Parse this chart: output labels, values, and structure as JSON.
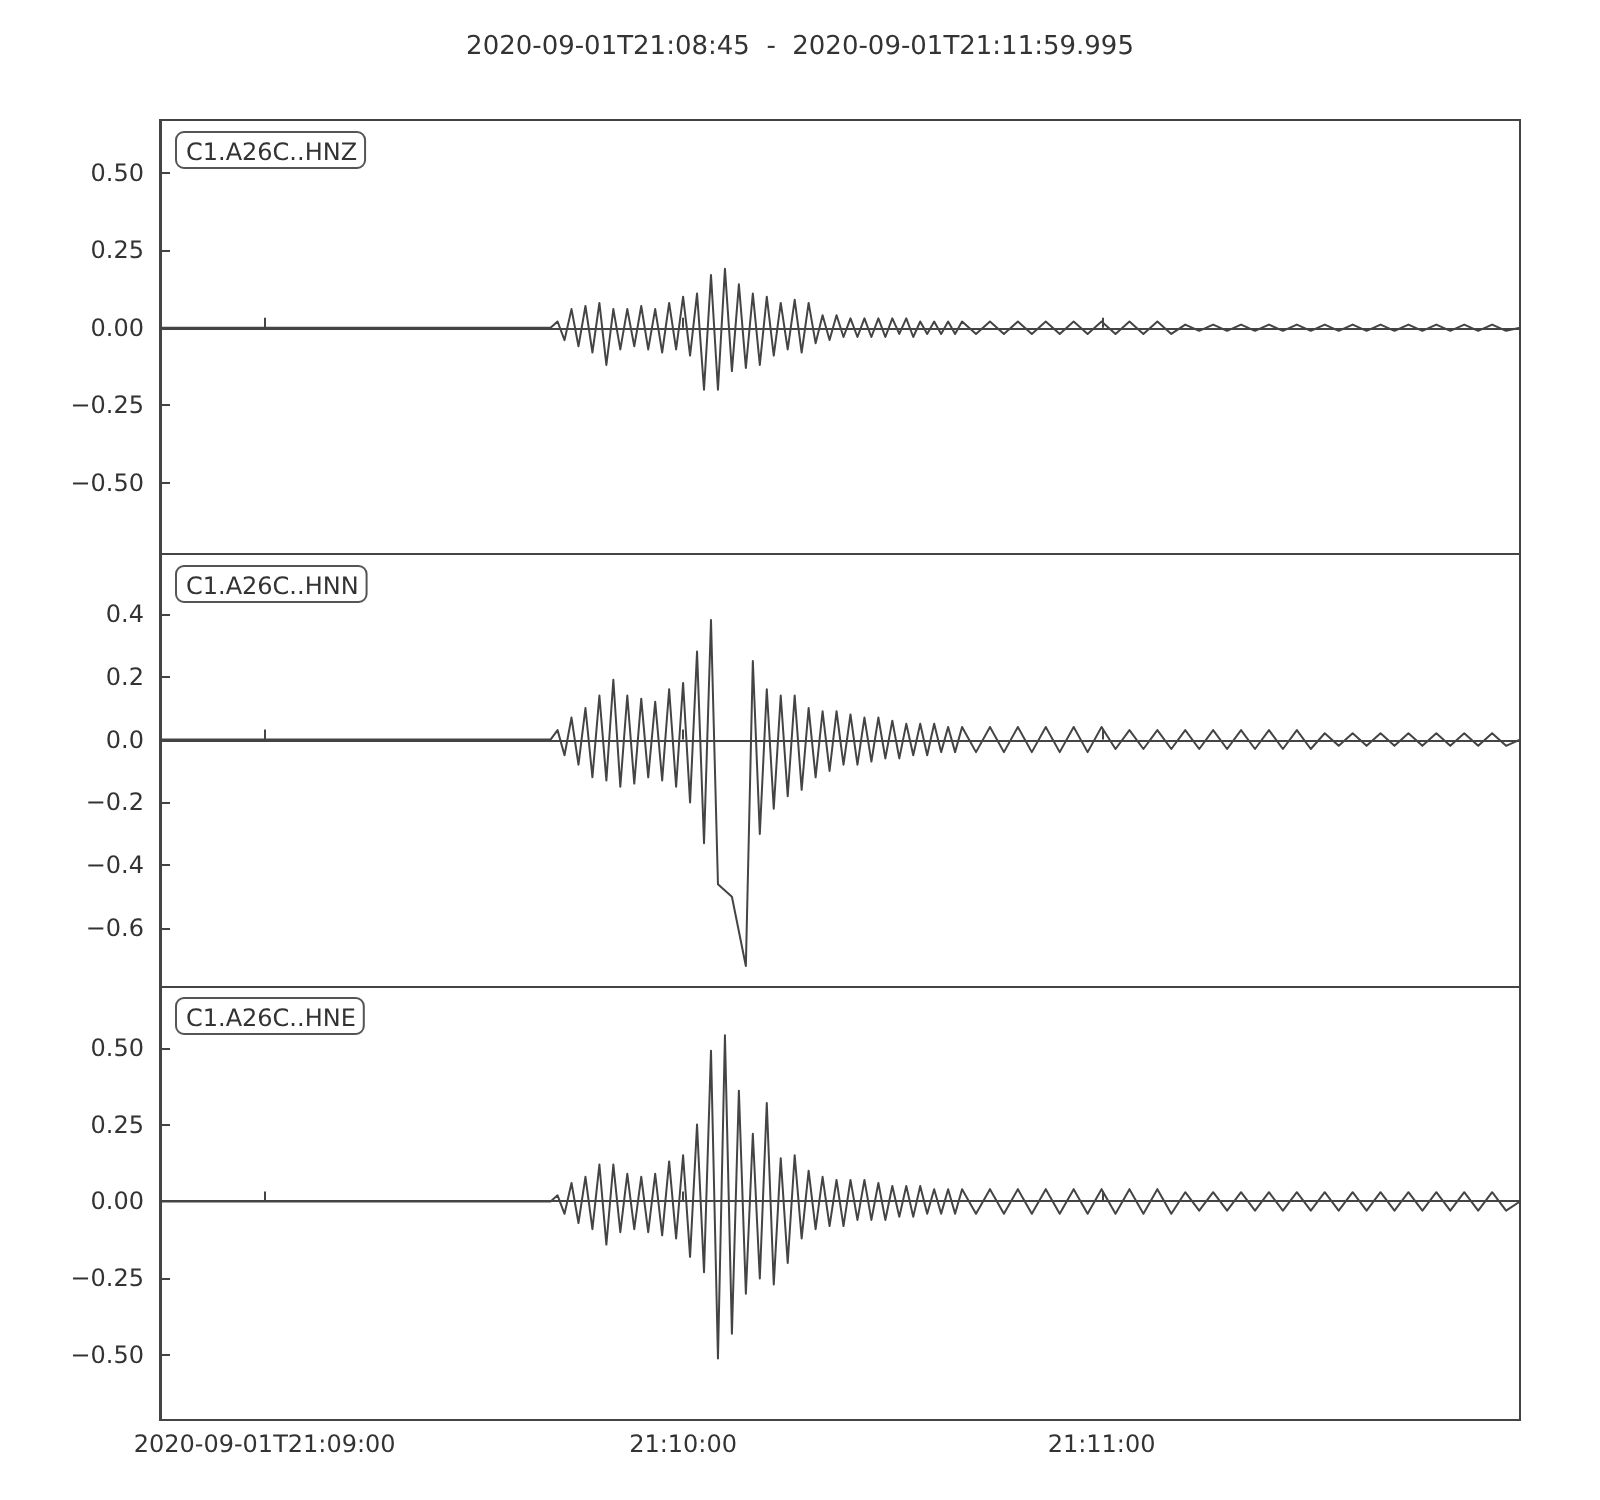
{
  "chart_data": [
    {
      "type": "line",
      "title": "2020-09-01T21:08:45  -  2020-09-01T21:11:59.995",
      "legend": "top left",
      "tick_labels": "y",
      "xlim": [
        "2020-09-01T21:08:45",
        "2020-09-01T21:11:59.995"
      ],
      "xticks": [
        {
          "value": "2020-09-01T21:09:00",
          "label": null
        },
        {
          "value": "2020-09-01T21:10:00",
          "label": null
        },
        {
          "value": "2020-09-01T21:11:00",
          "label": null
        }
      ],
      "ylim": [
        -0.73,
        0.67
      ],
      "yticks": [
        {
          "value": -0.5,
          "label": "−0.50"
        },
        {
          "value": -0.25,
          "label": "−0.25"
        },
        {
          "value": 0,
          "label": "0.00"
        },
        {
          "value": 0.25,
          "label": "0.25"
        },
        {
          "value": 0.5,
          "label": "0.50"
        }
      ],
      "x": [
        "2020-09-01T21:08:45",
        "2020-09-01T21:09:41",
        "2020-09-01T21:09:42",
        "2020-09-01T21:09:43",
        "2020-09-01T21:09:44",
        "2020-09-01T21:09:45",
        "2020-09-01T21:09:46",
        "2020-09-01T21:09:47",
        "2020-09-01T21:09:48",
        "2020-09-01T21:09:49",
        "2020-09-01T21:09:50",
        "2020-09-01T21:09:51",
        "2020-09-01T21:09:52",
        "2020-09-01T21:09:53",
        "2020-09-01T21:09:54",
        "2020-09-01T21:09:55",
        "2020-09-01T21:09:56",
        "2020-09-01T21:09:57",
        "2020-09-01T21:09:58",
        "2020-09-01T21:09:59",
        "2020-09-01T21:10:00",
        "2020-09-01T21:10:01",
        "2020-09-01T21:10:02",
        "2020-09-01T21:10:03",
        "2020-09-01T21:10:04",
        "2020-09-01T21:10:05",
        "2020-09-01T21:10:06",
        "2020-09-01T21:10:07",
        "2020-09-01T21:10:08",
        "2020-09-01T21:10:09",
        "2020-09-01T21:10:10",
        "2020-09-01T21:10:11",
        "2020-09-01T21:10:12",
        "2020-09-01T21:10:13",
        "2020-09-01T21:10:14",
        "2020-09-01T21:10:15",
        "2020-09-01T21:10:16",
        "2020-09-01T21:10:17",
        "2020-09-01T21:10:18",
        "2020-09-01T21:10:19",
        "2020-09-01T21:10:20",
        "2020-09-01T21:10:21",
        "2020-09-01T21:10:22",
        "2020-09-01T21:10:23",
        "2020-09-01T21:10:24",
        "2020-09-01T21:10:25",
        "2020-09-01T21:10:26",
        "2020-09-01T21:10:27",
        "2020-09-01T21:10:28",
        "2020-09-01T21:10:29",
        "2020-09-01T21:10:30",
        "2020-09-01T21:10:31",
        "2020-09-01T21:10:32",
        "2020-09-01T21:10:33",
        "2020-09-01T21:10:34",
        "2020-09-01T21:10:35",
        "2020-09-01T21:10:36",
        "2020-09-01T21:10:37",
        "2020-09-01T21:10:38",
        "2020-09-01T21:10:39",
        "2020-09-01T21:10:40",
        "2020-09-01T21:10:42",
        "2020-09-01T21:10:44",
        "2020-09-01T21:10:46",
        "2020-09-01T21:10:48",
        "2020-09-01T21:10:50",
        "2020-09-01T21:10:52",
        "2020-09-01T21:10:54",
        "2020-09-01T21:10:56",
        "2020-09-01T21:10:58",
        "2020-09-01T21:11:00",
        "2020-09-01T21:11:02",
        "2020-09-01T21:11:04",
        "2020-09-01T21:11:06",
        "2020-09-01T21:11:08",
        "2020-09-01T21:11:10",
        "2020-09-01T21:11:12",
        "2020-09-01T21:11:14",
        "2020-09-01T21:11:16",
        "2020-09-01T21:11:18",
        "2020-09-01T21:11:20",
        "2020-09-01T21:11:22",
        "2020-09-01T21:11:24",
        "2020-09-01T21:11:26",
        "2020-09-01T21:11:28",
        "2020-09-01T21:11:30",
        "2020-09-01T21:11:32",
        "2020-09-01T21:11:34",
        "2020-09-01T21:11:36",
        "2020-09-01T21:11:38",
        "2020-09-01T21:11:40",
        "2020-09-01T21:11:42",
        "2020-09-01T21:11:44",
        "2020-09-01T21:11:46",
        "2020-09-01T21:11:48",
        "2020-09-01T21:11:50",
        "2020-09-01T21:11:52",
        "2020-09-01T21:11:54",
        "2020-09-01T21:11:56",
        "2020-09-01T21:11:58",
        "2020-09-01T21:11:59.995"
      ],
      "series": [
        {
          "name": "C1.A26C..HNZ",
          "color": "#444444",
          "values": [
            0,
            0,
            0.02,
            -0.04,
            0.06,
            -0.06,
            0.07,
            -0.08,
            0.08,
            -0.12,
            0.06,
            -0.07,
            0.06,
            -0.06,
            0.07,
            -0.07,
            0.06,
            -0.08,
            0.08,
            -0.07,
            0.1,
            -0.09,
            0.11,
            -0.2,
            0.17,
            -0.2,
            0.19,
            -0.14,
            0.14,
            -0.13,
            0.11,
            -0.12,
            0.1,
            -0.09,
            0.08,
            -0.07,
            0.09,
            -0.08,
            0.08,
            -0.05,
            0.04,
            -0.04,
            0.04,
            -0.03,
            0.03,
            -0.03,
            0.03,
            -0.03,
            0.03,
            -0.03,
            0.03,
            -0.02,
            0.03,
            -0.03,
            0.02,
            -0.02,
            0.02,
            -0.02,
            0.02,
            -0.02,
            0.02,
            -0.02,
            0.02,
            -0.02,
            0.02,
            -0.02,
            0.02,
            -0.02,
            0.02,
            -0.02,
            0.02,
            -0.02,
            0.02,
            -0.02,
            0.02,
            -0.02,
            0.01,
            -0.01,
            0.01,
            -0.01,
            0.01,
            -0.01,
            0.01,
            -0.01,
            0.01,
            -0.01,
            0.01,
            -0.01,
            0.01,
            -0.01,
            0.01,
            -0.01,
            0.01,
            -0.01,
            0.01,
            -0.01,
            0.01,
            -0.01,
            0.01,
            -0.01,
            0
          ]
        }
      ]
    },
    {
      "type": "line",
      "legend": "top left",
      "tick_labels": "y",
      "xlim": [
        "2020-09-01T21:08:45",
        "2020-09-01T21:11:59.995"
      ],
      "xticks": [
        {
          "value": "2020-09-01T21:09:00",
          "label": null
        },
        {
          "value": "2020-09-01T21:10:00",
          "label": null
        },
        {
          "value": "2020-09-01T21:11:00",
          "label": null
        }
      ],
      "ylim": [
        -0.79,
        0.59
      ],
      "yticks": [
        {
          "value": -0.6,
          "label": "−0.6"
        },
        {
          "value": -0.4,
          "label": "−0.4"
        },
        {
          "value": -0.2,
          "label": "−0.2"
        },
        {
          "value": 0,
          "label": "0.0"
        },
        {
          "value": 0.2,
          "label": "0.2"
        },
        {
          "value": 0.4,
          "label": "0.4"
        }
      ],
      "x": [
        "2020-09-01T21:08:45",
        "2020-09-01T21:09:41",
        "2020-09-01T21:09:42",
        "2020-09-01T21:09:43",
        "2020-09-01T21:09:44",
        "2020-09-01T21:09:45",
        "2020-09-01T21:09:46",
        "2020-09-01T21:09:47",
        "2020-09-01T21:09:48",
        "2020-09-01T21:09:49",
        "2020-09-01T21:09:50",
        "2020-09-01T21:09:51",
        "2020-09-01T21:09:52",
        "2020-09-01T21:09:53",
        "2020-09-01T21:09:54",
        "2020-09-01T21:09:55",
        "2020-09-01T21:09:56",
        "2020-09-01T21:09:57",
        "2020-09-01T21:09:58",
        "2020-09-01T21:09:59",
        "2020-09-01T21:10:00",
        "2020-09-01T21:10:01",
        "2020-09-01T21:10:02",
        "2020-09-01T21:10:03",
        "2020-09-01T21:10:04",
        "2020-09-01T21:10:05",
        "2020-09-01T21:10:06",
        "2020-09-01T21:10:07",
        "2020-09-01T21:10:08",
        "2020-09-01T21:10:09",
        "2020-09-01T21:10:10",
        "2020-09-01T21:10:11",
        "2020-09-01T21:10:12",
        "2020-09-01T21:10:13",
        "2020-09-01T21:10:14",
        "2020-09-01T21:10:15",
        "2020-09-01T21:10:16",
        "2020-09-01T21:10:17",
        "2020-09-01T21:10:18",
        "2020-09-01T21:10:19",
        "2020-09-01T21:10:20",
        "2020-09-01T21:10:21",
        "2020-09-01T21:10:22",
        "2020-09-01T21:10:23",
        "2020-09-01T21:10:24",
        "2020-09-01T21:10:25",
        "2020-09-01T21:10:26",
        "2020-09-01T21:10:27",
        "2020-09-01T21:10:28",
        "2020-09-01T21:10:29",
        "2020-09-01T21:10:30",
        "2020-09-01T21:10:31",
        "2020-09-01T21:10:32",
        "2020-09-01T21:10:33",
        "2020-09-01T21:10:34",
        "2020-09-01T21:10:35",
        "2020-09-01T21:10:36",
        "2020-09-01T21:10:37",
        "2020-09-01T21:10:38",
        "2020-09-01T21:10:39",
        "2020-09-01T21:10:40",
        "2020-09-01T21:10:42",
        "2020-09-01T21:10:44",
        "2020-09-01T21:10:46",
        "2020-09-01T21:10:48",
        "2020-09-01T21:10:50",
        "2020-09-01T21:10:52",
        "2020-09-01T21:10:54",
        "2020-09-01T21:10:56",
        "2020-09-01T21:10:58",
        "2020-09-01T21:11:00",
        "2020-09-01T21:11:02",
        "2020-09-01T21:11:04",
        "2020-09-01T21:11:06",
        "2020-09-01T21:11:08",
        "2020-09-01T21:11:10",
        "2020-09-01T21:11:12",
        "2020-09-01T21:11:14",
        "2020-09-01T21:11:16",
        "2020-09-01T21:11:18",
        "2020-09-01T21:11:20",
        "2020-09-01T21:11:22",
        "2020-09-01T21:11:24",
        "2020-09-01T21:11:26",
        "2020-09-01T21:11:28",
        "2020-09-01T21:11:30",
        "2020-09-01T21:11:32",
        "2020-09-01T21:11:34",
        "2020-09-01T21:11:36",
        "2020-09-01T21:11:38",
        "2020-09-01T21:11:40",
        "2020-09-01T21:11:42",
        "2020-09-01T21:11:44",
        "2020-09-01T21:11:46",
        "2020-09-01T21:11:48",
        "2020-09-01T21:11:50",
        "2020-09-01T21:11:52",
        "2020-09-01T21:11:54",
        "2020-09-01T21:11:56",
        "2020-09-01T21:11:58",
        "2020-09-01T21:11:59.995"
      ],
      "series": [
        {
          "name": "C1.A26C..HNN",
          "color": "#444444",
          "values": [
            0,
            0,
            0.03,
            -0.05,
            0.07,
            -0.08,
            0.1,
            -0.12,
            0.14,
            -0.13,
            0.19,
            -0.15,
            0.14,
            -0.14,
            0.13,
            -0.12,
            0.12,
            -0.13,
            0.16,
            -0.15,
            0.18,
            -0.2,
            0.28,
            -0.33,
            0.38,
            -0.46,
            null,
            -0.5,
            null,
            -0.72,
            0.25,
            -0.3,
            0.16,
            -0.22,
            0.14,
            -0.18,
            0.14,
            -0.16,
            0.1,
            -0.12,
            0.09,
            -0.1,
            0.09,
            -0.08,
            0.08,
            -0.08,
            0.07,
            -0.07,
            0.07,
            -0.06,
            0.06,
            -0.06,
            0.05,
            -0.05,
            0.05,
            -0.05,
            0.05,
            -0.04,
            0.04,
            -0.04,
            0.04,
            -0.04,
            0.04,
            -0.04,
            0.04,
            -0.04,
            0.04,
            -0.04,
            0.04,
            -0.04,
            0.04,
            -0.03,
            0.03,
            -0.03,
            0.03,
            -0.03,
            0.03,
            -0.03,
            0.03,
            -0.03,
            0.03,
            -0.03,
            0.03,
            -0.03,
            0.03,
            -0.03,
            0.02,
            -0.02,
            0.02,
            -0.02,
            0.02,
            -0.02,
            0.02,
            -0.02,
            0.02,
            -0.02,
            0.02,
            -0.02,
            0.02,
            -0.02,
            0
          ]
        }
      ]
    },
    {
      "type": "line",
      "legend": "top left",
      "xlim": [
        "2020-09-01T21:08:45",
        "2020-09-01T21:11:59.995"
      ],
      "xticks": [
        {
          "value": "2020-09-01T21:09:00",
          "label": "2020-09-01T21:09:00"
        },
        {
          "value": "2020-09-01T21:10:00",
          "label": "21:10:00"
        },
        {
          "value": "2020-09-01T21:11:00",
          "label": "21:11:00"
        }
      ],
      "ylim": [
        -0.71,
        0.7
      ],
      "yticks": [
        {
          "value": -0.5,
          "label": "−0.50"
        },
        {
          "value": -0.25,
          "label": "−0.25"
        },
        {
          "value": 0,
          "label": "0.00"
        },
        {
          "value": 0.25,
          "label": "0.25"
        },
        {
          "value": 0.5,
          "label": "0.50"
        }
      ],
      "x": [
        "2020-09-01T21:08:45",
        "2020-09-01T21:09:41",
        "2020-09-01T21:09:42",
        "2020-09-01T21:09:43",
        "2020-09-01T21:09:44",
        "2020-09-01T21:09:45",
        "2020-09-01T21:09:46",
        "2020-09-01T21:09:47",
        "2020-09-01T21:09:48",
        "2020-09-01T21:09:49",
        "2020-09-01T21:09:50",
        "2020-09-01T21:09:51",
        "2020-09-01T21:09:52",
        "2020-09-01T21:09:53",
        "2020-09-01T21:09:54",
        "2020-09-01T21:09:55",
        "2020-09-01T21:09:56",
        "2020-09-01T21:09:57",
        "2020-09-01T21:09:58",
        "2020-09-01T21:09:59",
        "2020-09-01T21:10:00",
        "2020-09-01T21:10:01",
        "2020-09-01T21:10:02",
        "2020-09-01T21:10:03",
        "2020-09-01T21:10:04",
        "2020-09-01T21:10:05",
        "2020-09-01T21:10:06",
        "2020-09-01T21:10:07",
        "2020-09-01T21:10:08",
        "2020-09-01T21:10:09",
        "2020-09-01T21:10:10",
        "2020-09-01T21:10:11",
        "2020-09-01T21:10:12",
        "2020-09-01T21:10:13",
        "2020-09-01T21:10:14",
        "2020-09-01T21:10:15",
        "2020-09-01T21:10:16",
        "2020-09-01T21:10:17",
        "2020-09-01T21:10:18",
        "2020-09-01T21:10:19",
        "2020-09-01T21:10:20",
        "2020-09-01T21:10:21",
        "2020-09-01T21:10:22",
        "2020-09-01T21:10:23",
        "2020-09-01T21:10:24",
        "2020-09-01T21:10:25",
        "2020-09-01T21:10:26",
        "2020-09-01T21:10:27",
        "2020-09-01T21:10:28",
        "2020-09-01T21:10:29",
        "2020-09-01T21:10:30",
        "2020-09-01T21:10:31",
        "2020-09-01T21:10:32",
        "2020-09-01T21:10:33",
        "2020-09-01T21:10:34",
        "2020-09-01T21:10:35",
        "2020-09-01T21:10:36",
        "2020-09-01T21:10:37",
        "2020-09-01T21:10:38",
        "2020-09-01T21:10:39",
        "2020-09-01T21:10:40",
        "2020-09-01T21:10:42",
        "2020-09-01T21:10:44",
        "2020-09-01T21:10:46",
        "2020-09-01T21:10:48",
        "2020-09-01T21:10:50",
        "2020-09-01T21:10:52",
        "2020-09-01T21:10:54",
        "2020-09-01T21:10:56",
        "2020-09-01T21:10:58",
        "2020-09-01T21:11:00",
        "2020-09-01T21:11:02",
        "2020-09-01T21:11:04",
        "2020-09-01T21:11:06",
        "2020-09-01T21:11:08",
        "2020-09-01T21:11:10",
        "2020-09-01T21:11:12",
        "2020-09-01T21:11:14",
        "2020-09-01T21:11:16",
        "2020-09-01T21:11:18",
        "2020-09-01T21:11:20",
        "2020-09-01T21:11:22",
        "2020-09-01T21:11:24",
        "2020-09-01T21:11:26",
        "2020-09-01T21:11:28",
        "2020-09-01T21:11:30",
        "2020-09-01T21:11:32",
        "2020-09-01T21:11:34",
        "2020-09-01T21:11:36",
        "2020-09-01T21:11:38",
        "2020-09-01T21:11:40",
        "2020-09-01T21:11:42",
        "2020-09-01T21:11:44",
        "2020-09-01T21:11:46",
        "2020-09-01T21:11:48",
        "2020-09-01T21:11:50",
        "2020-09-01T21:11:52",
        "2020-09-01T21:11:54",
        "2020-09-01T21:11:56",
        "2020-09-01T21:11:58",
        "2020-09-01T21:11:59.995"
      ],
      "series": [
        {
          "name": "C1.A26C..HNE",
          "color": "#444444",
          "values": [
            0,
            0,
            0.02,
            -0.04,
            0.06,
            -0.07,
            0.08,
            -0.09,
            0.12,
            -0.14,
            0.12,
            -0.1,
            0.09,
            -0.09,
            0.08,
            -0.1,
            0.09,
            -0.11,
            0.13,
            -0.12,
            0.15,
            -0.18,
            0.25,
            -0.23,
            0.49,
            -0.51,
            0.54,
            -0.43,
            0.36,
            -0.3,
            0.22,
            -0.25,
            0.32,
            -0.27,
            0.14,
            -0.2,
            0.15,
            -0.12,
            0.1,
            -0.09,
            0.08,
            -0.08,
            0.07,
            -0.08,
            0.07,
            -0.06,
            0.07,
            -0.06,
            0.06,
            -0.06,
            0.05,
            -0.05,
            0.05,
            -0.05,
            0.05,
            -0.04,
            0.04,
            -0.04,
            0.04,
            -0.04,
            0.04,
            -0.04,
            0.04,
            -0.04,
            0.04,
            -0.04,
            0.04,
            -0.04,
            0.04,
            -0.04,
            0.04,
            -0.04,
            0.04,
            -0.04,
            0.04,
            -0.04,
            0.03,
            -0.03,
            0.03,
            -0.03,
            0.03,
            -0.03,
            0.03,
            -0.03,
            0.03,
            -0.03,
            0.03,
            -0.03,
            0.03,
            -0.03,
            0.03,
            -0.03,
            0.03,
            -0.03,
            0.03,
            -0.03,
            0.03,
            -0.03,
            0.03,
            -0.03,
            0
          ]
        }
      ]
    }
  ]
}
